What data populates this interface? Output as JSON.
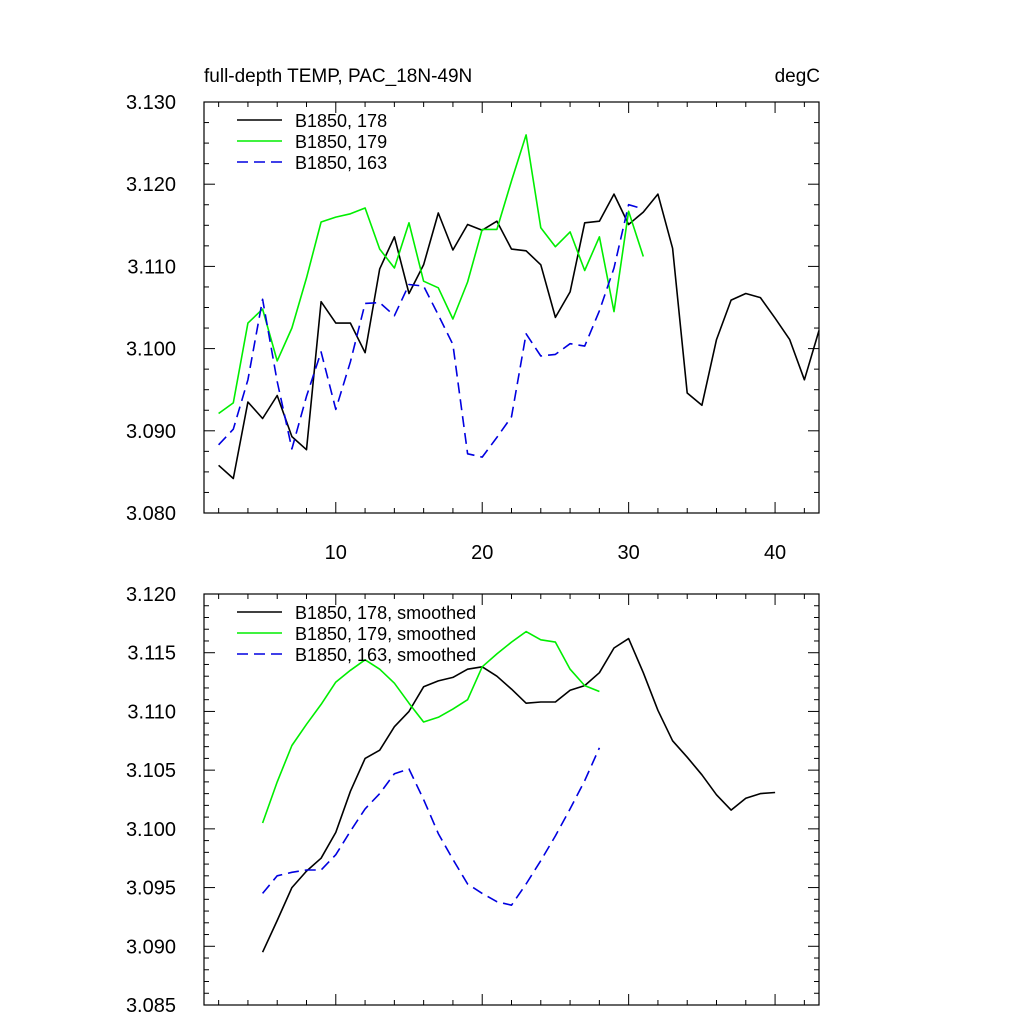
{
  "chart_data": [
    {
      "type": "line",
      "title": "full-depth TEMP, PAC_18N-49N",
      "units": "degC",
      "xlabel": "",
      "ylabel": "",
      "xlim": [
        1,
        43
      ],
      "ylim": [
        3.08,
        3.13
      ],
      "yticks": [
        3.08,
        3.09,
        3.1,
        3.11,
        3.12,
        3.13
      ],
      "ytick_labels": [
        "3.080",
        "3.090",
        "3.100",
        "3.110",
        "3.120",
        "3.130"
      ],
      "xticks": [
        10,
        20,
        30,
        40
      ],
      "xtick_labels": [
        "10",
        "20",
        "30",
        "40"
      ],
      "legend_position": "top-left",
      "series": [
        {
          "name": "B1850, 178",
          "color": "#000000",
          "dash": "solid",
          "x_start": 2,
          "values": [
            3.0858,
            3.0842,
            3.0935,
            3.0915,
            3.0943,
            3.0893,
            3.0877,
            3.1057,
            3.1031,
            3.1031,
            3.0995,
            3.1097,
            3.1136,
            3.1067,
            3.1102,
            3.1165,
            3.112,
            3.1151,
            3.1144,
            3.1155,
            3.1121,
            3.1119,
            3.1102,
            3.1038,
            3.1069,
            3.1153,
            3.1155,
            3.1188,
            3.1151,
            3.1166,
            3.1188,
            3.1122,
            3.0946,
            3.0931,
            3.1011,
            3.1059,
            3.1067,
            3.1062,
            3.1037,
            3.1011,
            3.0962,
            3.1022
          ]
        },
        {
          "name": "B1850, 179",
          "color": "#00ee00",
          "dash": "solid",
          "x_start": 2,
          "values": [
            3.0921,
            3.0934,
            3.1031,
            3.1048,
            3.0985,
            3.1025,
            3.1086,
            3.1154,
            3.116,
            3.1164,
            3.1171,
            3.1121,
            3.1098,
            3.1153,
            3.1082,
            3.1074,
            3.1036,
            3.1081,
            3.1145,
            3.1145,
            3.1204,
            3.126,
            3.1147,
            3.1124,
            3.1142,
            3.1095,
            3.1136,
            3.1045,
            3.1167,
            3.1112
          ]
        },
        {
          "name": "B1850, 163",
          "color": "#0000e0",
          "dash": "dashed",
          "x_start": 2,
          "values": [
            3.0883,
            3.0902,
            3.0962,
            3.106,
            3.096,
            3.0878,
            3.0942,
            3.0996,
            3.0926,
            3.0984,
            3.1055,
            3.1056,
            3.104,
            3.1078,
            3.1076,
            3.1041,
            3.1005,
            3.0872,
            3.0868,
            3.0892,
            3.0917,
            3.1018,
            3.0991,
            3.0993,
            3.1006,
            3.1003,
            3.1046,
            3.1098,
            3.1175,
            3.117
          ]
        }
      ]
    },
    {
      "type": "line",
      "title": "",
      "xlabel": "",
      "ylabel": "",
      "xlim": [
        1,
        43
      ],
      "ylim": [
        3.085,
        3.12
      ],
      "yticks": [
        3.085,
        3.09,
        3.095,
        3.1,
        3.105,
        3.11,
        3.115,
        3.12
      ],
      "ytick_labels": [
        "3.085",
        "3.090",
        "3.095",
        "3.100",
        "3.105",
        "3.110",
        "3.115",
        "3.120"
      ],
      "xticks": [
        10,
        20,
        30,
        40
      ],
      "legend_position": "top-left",
      "series": [
        {
          "name": "B1850, 178, smoothed",
          "color": "#000000",
          "dash": "solid",
          "x_start": 5,
          "values": [
            3.0895,
            3.0922,
            3.095,
            3.0964,
            3.0975,
            3.0997,
            3.1032,
            3.106,
            3.1067,
            3.1087,
            3.11,
            3.1121,
            3.1126,
            3.1129,
            3.1136,
            3.1138,
            3.113,
            3.1119,
            3.1107,
            3.1108,
            3.1108,
            3.1118,
            3.1122,
            3.1133,
            3.1154,
            3.1162,
            3.1133,
            3.1101,
            3.1075,
            3.1061,
            3.1046,
            3.1029,
            3.1016,
            3.1026,
            3.103,
            3.1031
          ]
        },
        {
          "name": "B1850, 179, smoothed",
          "color": "#00ee00",
          "dash": "solid",
          "x_start": 5,
          "values": [
            3.1005,
            3.104,
            3.1071,
            3.1089,
            3.1106,
            3.1125,
            3.1135,
            3.1144,
            3.1136,
            3.1124,
            3.1107,
            3.1091,
            3.1095,
            3.1102,
            3.111,
            3.1138,
            3.1149,
            3.1159,
            3.1168,
            3.1161,
            3.1159,
            3.1136,
            3.1122,
            3.1117
          ]
        },
        {
          "name": "B1850, 163, smoothed",
          "color": "#0000e0",
          "dash": "dashed",
          "x_start": 5,
          "values": [
            3.0945,
            3.096,
            3.0963,
            3.0965,
            3.0965,
            3.0978,
            3.0998,
            3.1017,
            3.103,
            3.1047,
            3.1051,
            3.1025,
            3.0996,
            3.0974,
            3.0953,
            3.0945,
            3.0938,
            3.0935,
            3.0953,
            3.0973,
            3.0994,
            3.1017,
            3.1041,
            3.1069
          ]
        }
      ]
    }
  ]
}
